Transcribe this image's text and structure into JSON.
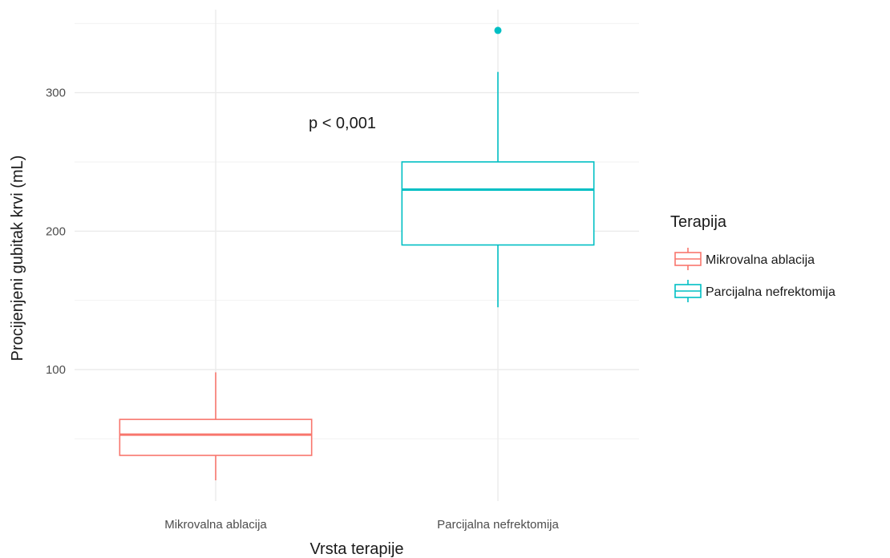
{
  "chart_data": {
    "type": "boxplot",
    "xlabel": "Vrsta terapije",
    "ylabel": "Procijenjeni gubitak krvi (mL)",
    "categories": [
      "Mikrovalna ablacija",
      "Parcijalna nefrektomija"
    ],
    "ylim": [
      5,
      360
    ],
    "y_ticks": [
      100,
      200,
      300
    ],
    "y_minor_ticks": [
      50,
      150,
      250,
      350
    ],
    "grid": true,
    "boxes": [
      {
        "category": "Mikrovalna ablacija",
        "whisker_low": 20,
        "q1": 38,
        "median": 53,
        "q3": 64,
        "whisker_high": 98,
        "outliers": [],
        "color": "#F8766D"
      },
      {
        "category": "Parcijalna nefrektomija",
        "whisker_low": 145,
        "q1": 190,
        "median": 230,
        "q3": 250,
        "whisker_high": 315,
        "outliers": [
          345
        ],
        "color": "#00BFC4"
      }
    ],
    "annotation": "p < 0,001",
    "legend": {
      "title": "Terapija",
      "position": "right",
      "items": [
        {
          "label": "Mikrovalna ablacija",
          "color": "#F8766D"
        },
        {
          "label": "Parcijalna nefrektomija",
          "color": "#00BFC4"
        }
      ]
    }
  }
}
